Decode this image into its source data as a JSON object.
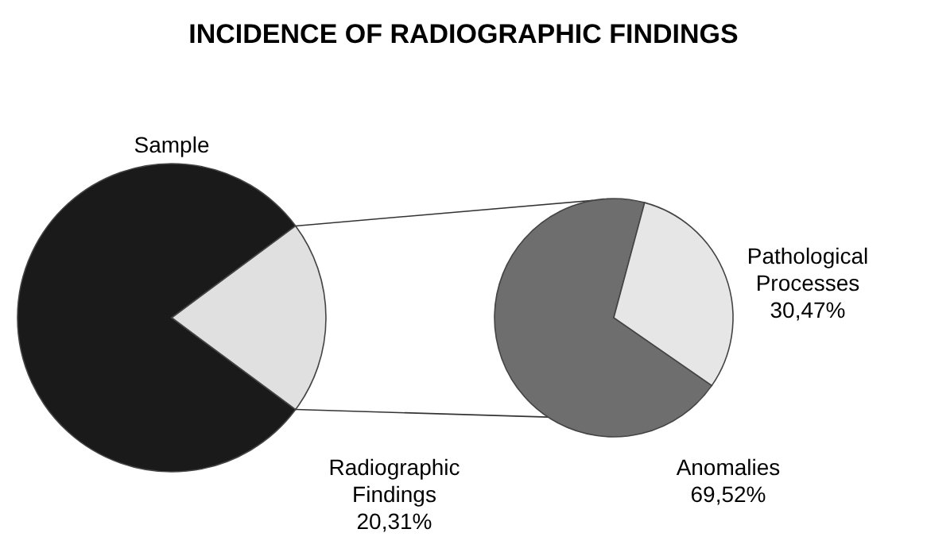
{
  "chart_data": [
    {
      "type": "pie",
      "title": "INCIDENCE OF RADIOGRAPHIC FINDINGS",
      "categories": [
        "Sample",
        "Radiographic Findings"
      ],
      "values": [
        79.69,
        20.31
      ],
      "value_labels": [
        null,
        "20,31%"
      ],
      "colors": [
        "#1a1a1a",
        "#e0e0e0"
      ]
    },
    {
      "type": "pie",
      "categories": [
        "Anomalies",
        "Pathological Processes"
      ],
      "values": [
        69.52,
        30.47
      ],
      "value_labels": [
        "69,52%",
        "30,47%"
      ],
      "colors": [
        "#6e6e6e",
        "#e6e6e6"
      ]
    }
  ]
}
